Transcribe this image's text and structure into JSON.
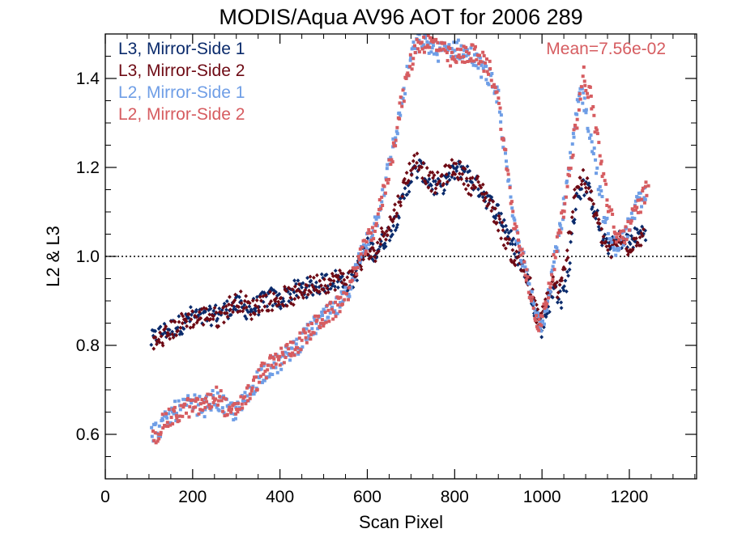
{
  "chart_data": {
    "type": "scatter",
    "title": "MODIS/Aqua AV96 AOT for 2006 289",
    "xlabel": "Scan Pixel",
    "ylabel": "L2 & L3",
    "xlim": [
      0,
      1354
    ],
    "ylim": [
      0.5,
      1.5
    ],
    "xticks": [
      {
        "value": 0,
        "label": "0"
      },
      {
        "value": 200,
        "label": "200"
      },
      {
        "value": 400,
        "label": "400"
      },
      {
        "value": 600,
        "label": "600"
      },
      {
        "value": 800,
        "label": "800"
      },
      {
        "value": 1000,
        "label": "1000"
      },
      {
        "value": 1200,
        "label": "1200"
      }
    ],
    "x_minor_step": 50,
    "yticks": [
      {
        "value": 0.6,
        "label": "0.6"
      },
      {
        "value": 0.8,
        "label": "0.8"
      },
      {
        "value": 1.0,
        "label": "1.0"
      },
      {
        "value": 1.2,
        "label": "1.2"
      },
      {
        "value": 1.4,
        "label": "1.4"
      }
    ],
    "y_minor_step": 0.05,
    "reference_line": {
      "y": 1.0,
      "style": "dotted"
    },
    "annotation": "Mean=7.56e-02",
    "legend_position": "top-left",
    "series": [
      {
        "name": "L3, Mirror-Side 1",
        "color": "#0a2a6b",
        "marker": "diamond",
        "points": [
          [
            105,
            0.81
          ],
          [
            130,
            0.83
          ],
          [
            155,
            0.84
          ],
          [
            180,
            0.85
          ],
          [
            200,
            0.87
          ],
          [
            225,
            0.86
          ],
          [
            250,
            0.87
          ],
          [
            275,
            0.88
          ],
          [
            300,
            0.89
          ],
          [
            325,
            0.88
          ],
          [
            350,
            0.89
          ],
          [
            375,
            0.91
          ],
          [
            400,
            0.9
          ],
          [
            425,
            0.92
          ],
          [
            450,
            0.93
          ],
          [
            475,
            0.93
          ],
          [
            500,
            0.94
          ],
          [
            525,
            0.95
          ],
          [
            550,
            0.94
          ],
          [
            570,
            0.95
          ],
          [
            585,
            0.99
          ],
          [
            600,
            1.02
          ],
          [
            620,
            1.01
          ],
          [
            640,
            1.04
          ],
          [
            660,
            1.07
          ],
          [
            680,
            1.12
          ],
          [
            700,
            1.18
          ],
          [
            720,
            1.2
          ],
          [
            740,
            1.17
          ],
          [
            760,
            1.15
          ],
          [
            780,
            1.17
          ],
          [
            800,
            1.19
          ],
          [
            820,
            1.2
          ],
          [
            840,
            1.17
          ],
          [
            860,
            1.15
          ],
          [
            880,
            1.12
          ],
          [
            900,
            1.1
          ],
          [
            920,
            1.06
          ],
          [
            940,
            1.01
          ],
          [
            960,
            0.97
          ],
          [
            975,
            0.92
          ],
          [
            990,
            0.86
          ],
          [
            1000,
            0.84
          ],
          [
            1015,
            0.89
          ],
          [
            1030,
            0.93
          ],
          [
            1045,
            0.9
          ],
          [
            1060,
            0.96
          ],
          [
            1080,
            1.14
          ],
          [
            1100,
            1.16
          ],
          [
            1120,
            1.11
          ],
          [
            1140,
            1.03
          ],
          [
            1160,
            1.02
          ],
          [
            1180,
            1.04
          ],
          [
            1200,
            1.03
          ],
          [
            1220,
            1.05
          ],
          [
            1240,
            1.06
          ]
        ]
      },
      {
        "name": "L3, Mirror-Side 2",
        "color": "#6e0a14",
        "marker": "diamond",
        "points": [
          [
            110,
            0.8
          ],
          [
            135,
            0.82
          ],
          [
            160,
            0.84
          ],
          [
            185,
            0.86
          ],
          [
            210,
            0.86
          ],
          [
            235,
            0.87
          ],
          [
            260,
            0.86
          ],
          [
            285,
            0.89
          ],
          [
            310,
            0.9
          ],
          [
            335,
            0.88
          ],
          [
            360,
            0.9
          ],
          [
            385,
            0.9
          ],
          [
            410,
            0.91
          ],
          [
            435,
            0.91
          ],
          [
            460,
            0.93
          ],
          [
            485,
            0.94
          ],
          [
            510,
            0.94
          ],
          [
            535,
            0.95
          ],
          [
            560,
            0.95
          ],
          [
            578,
            0.97
          ],
          [
            595,
            1.01
          ],
          [
            615,
            1.0
          ],
          [
            635,
            1.05
          ],
          [
            655,
            1.08
          ],
          [
            675,
            1.13
          ],
          [
            695,
            1.19
          ],
          [
            715,
            1.22
          ],
          [
            735,
            1.18
          ],
          [
            755,
            1.16
          ],
          [
            775,
            1.18
          ],
          [
            795,
            1.2
          ],
          [
            815,
            1.19
          ],
          [
            835,
            1.16
          ],
          [
            855,
            1.16
          ],
          [
            875,
            1.13
          ],
          [
            895,
            1.09
          ],
          [
            915,
            1.04
          ],
          [
            935,
            1.0
          ],
          [
            955,
            0.98
          ],
          [
            970,
            0.94
          ],
          [
            985,
            0.88
          ],
          [
            995,
            0.85
          ],
          [
            1010,
            0.9
          ],
          [
            1025,
            0.94
          ],
          [
            1040,
            0.92
          ],
          [
            1055,
            0.98
          ],
          [
            1075,
            1.15
          ],
          [
            1095,
            1.18
          ],
          [
            1115,
            1.12
          ],
          [
            1135,
            1.05
          ],
          [
            1155,
            1.01
          ],
          [
            1175,
            1.03
          ],
          [
            1195,
            1.02
          ],
          [
            1215,
            1.04
          ],
          [
            1235,
            1.05
          ]
        ]
      },
      {
        "name": "L2, Mirror-Side 1",
        "color": "#6f9ee6",
        "marker": "square",
        "points": [
          [
            105,
            0.6
          ],
          [
            130,
            0.62
          ],
          [
            155,
            0.65
          ],
          [
            180,
            0.66
          ],
          [
            200,
            0.67
          ],
          [
            225,
            0.66
          ],
          [
            250,
            0.68
          ],
          [
            275,
            0.66
          ],
          [
            300,
            0.65
          ],
          [
            325,
            0.68
          ],
          [
            350,
            0.73
          ],
          [
            375,
            0.75
          ],
          [
            400,
            0.76
          ],
          [
            425,
            0.79
          ],
          [
            450,
            0.81
          ],
          [
            475,
            0.84
          ],
          [
            500,
            0.86
          ],
          [
            525,
            0.88
          ],
          [
            550,
            0.91
          ],
          [
            570,
            0.96
          ],
          [
            585,
            1.0
          ],
          [
            600,
            1.04
          ],
          [
            620,
            1.08
          ],
          [
            640,
            1.16
          ],
          [
            660,
            1.25
          ],
          [
            680,
            1.35
          ],
          [
            700,
            1.45
          ],
          [
            720,
            1.49
          ],
          [
            760,
            1.46
          ],
          [
            800,
            1.47
          ],
          [
            840,
            1.45
          ],
          [
            880,
            1.4
          ],
          [
            900,
            1.36
          ],
          [
            920,
            1.18
          ],
          [
            940,
            1.05
          ],
          [
            960,
            0.98
          ],
          [
            975,
            0.91
          ],
          [
            990,
            0.86
          ],
          [
            1000,
            0.85
          ],
          [
            1015,
            0.92
          ],
          [
            1030,
            1.0
          ],
          [
            1045,
            1.08
          ],
          [
            1060,
            1.18
          ],
          [
            1080,
            1.32
          ],
          [
            1090,
            1.38
          ],
          [
            1100,
            1.33
          ],
          [
            1120,
            1.23
          ],
          [
            1140,
            1.1
          ],
          [
            1160,
            1.02
          ],
          [
            1180,
            1.03
          ],
          [
            1200,
            1.07
          ],
          [
            1220,
            1.12
          ],
          [
            1240,
            1.14
          ]
        ]
      },
      {
        "name": "L2, Mirror-Side 2",
        "color": "#d65c60",
        "marker": "square",
        "points": [
          [
            110,
            0.59
          ],
          [
            135,
            0.63
          ],
          [
            160,
            0.64
          ],
          [
            185,
            0.66
          ],
          [
            210,
            0.66
          ],
          [
            235,
            0.67
          ],
          [
            260,
            0.69
          ],
          [
            285,
            0.64
          ],
          [
            310,
            0.67
          ],
          [
            335,
            0.7
          ],
          [
            360,
            0.74
          ],
          [
            385,
            0.76
          ],
          [
            410,
            0.78
          ],
          [
            435,
            0.8
          ],
          [
            460,
            0.82
          ],
          [
            485,
            0.85
          ],
          [
            510,
            0.87
          ],
          [
            535,
            0.89
          ],
          [
            560,
            0.93
          ],
          [
            578,
            0.99
          ],
          [
            595,
            1.02
          ],
          [
            615,
            1.06
          ],
          [
            635,
            1.13
          ],
          [
            655,
            1.22
          ],
          [
            675,
            1.33
          ],
          [
            695,
            1.42
          ],
          [
            715,
            1.48
          ],
          [
            755,
            1.48
          ],
          [
            795,
            1.44
          ],
          [
            835,
            1.46
          ],
          [
            875,
            1.43
          ],
          [
            895,
            1.38
          ],
          [
            915,
            1.24
          ],
          [
            935,
            1.08
          ],
          [
            955,
            1.0
          ],
          [
            970,
            0.93
          ],
          [
            985,
            0.87
          ],
          [
            995,
            0.84
          ],
          [
            1010,
            0.9
          ],
          [
            1025,
            0.97
          ],
          [
            1040,
            1.05
          ],
          [
            1055,
            1.14
          ],
          [
            1075,
            1.28
          ],
          [
            1095,
            1.41
          ],
          [
            1110,
            1.36
          ],
          [
            1130,
            1.25
          ],
          [
            1150,
            1.12
          ],
          [
            1170,
            1.04
          ],
          [
            1190,
            1.05
          ],
          [
            1210,
            1.09
          ],
          [
            1230,
            1.13
          ],
          [
            1245,
            1.16
          ]
        ]
      }
    ]
  }
}
